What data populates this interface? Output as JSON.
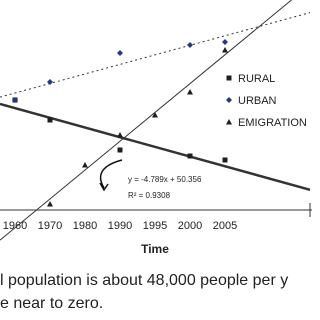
{
  "chart_data": {
    "type": "scatter",
    "xlabel": "Time",
    "categories": [
      "1960",
      "1970",
      "1980",
      "1990",
      "1995",
      "2000",
      "2005"
    ],
    "ylim": [
      0,
      105
    ],
    "series": [
      {
        "name": "RURAL",
        "color": "#1e1e1e",
        "marker": "square",
        "trendline": "solid",
        "values": [
          55,
          45,
          null,
          30,
          null,
          27,
          25
        ]
      },
      {
        "name": "URBAN",
        "color": "#27358a",
        "marker": "diamond",
        "trendline": "dotted",
        "values": [
          55,
          64,
          null,
          78.5,
          null,
          82.5,
          84
        ]
      },
      {
        "name": "EMIGRATION",
        "color": "#1e1e1e",
        "marker": "triangle",
        "trendline": "thin",
        "values": [
          null,
          3,
          22.5,
          37.5,
          47.5,
          59,
          80
        ]
      }
    ],
    "annotations": [
      "y = -4.789x + 50.356",
      "R² = 0.9308"
    ]
  },
  "caption_lines": [
    "l population is about 48,000 people per y",
    "e near to zero."
  ]
}
